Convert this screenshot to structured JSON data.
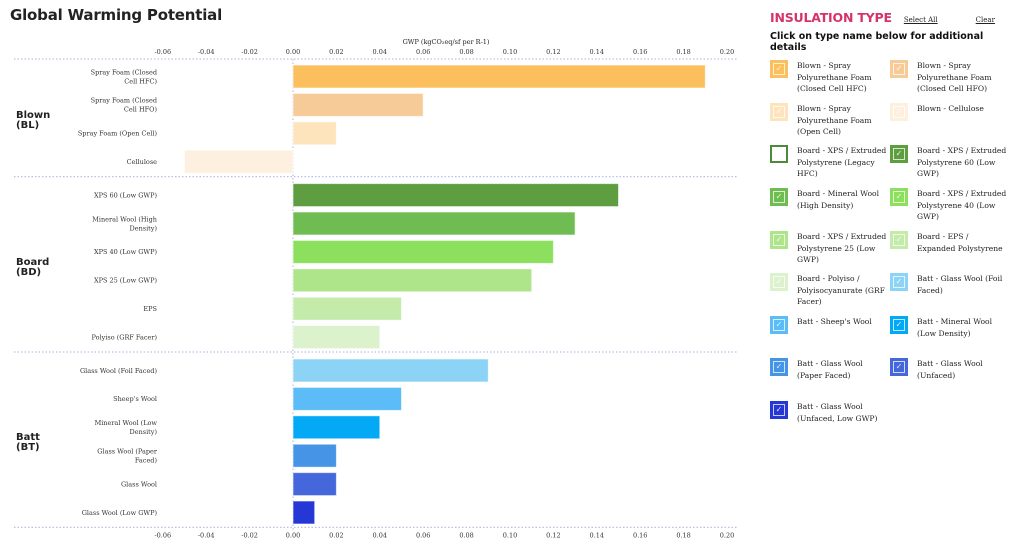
{
  "page": {
    "title": "Global Warming Potential"
  },
  "panel": {
    "title": "INSULATION TYPE",
    "select_all_label": "Select All",
    "clear_label": "Clear",
    "subtitle": "Click on type name below for additional details",
    "legend": [
      {
        "label": "Blown - Spray Polyurethane Foam (Closed Cell HFC)",
        "color": "#fbbf5e",
        "checked": true
      },
      {
        "label": "Blown - Spray Polyurethane Foam (Closed Cell HFO)",
        "color": "#f7cb97",
        "checked": true
      },
      {
        "label": "Blown - Spray Polyurethane Foam (Open Cell)",
        "color": "#fde4bd",
        "checked": true
      },
      {
        "label": "Blown - Cellulose",
        "color": "#fdf0de",
        "checked": true
      },
      {
        "label": "Board - XPS / Extruded Polystyrene (Legacy HFC)",
        "color": "#4e8a3c",
        "checked": false
      },
      {
        "label": "Board - XPS / Extruded Polystyrene 60 (Low GWP)",
        "color": "#5e9e41",
        "checked": true
      },
      {
        "label": "Board - Mineral Wool (High Density)",
        "color": "#6fbd52",
        "checked": true
      },
      {
        "label": "Board - XPS / Extruded Polystyrene 40 (Low GWP)",
        "color": "#8ce05e",
        "checked": true
      },
      {
        "label": "Board - XPS / Extruded Polystyrene 25 (Low GWP)",
        "color": "#aee58a",
        "checked": true
      },
      {
        "label": "Board - EPS / Expanded Polystyrene",
        "color": "#c4ebaa",
        "checked": true
      },
      {
        "label": "Board - Polyiso / Polyisocyanurate (GRF Facer)",
        "color": "#dcf2cd",
        "checked": true
      },
      {
        "label": "Batt - Glass Wool (Foil Faced)",
        "color": "#8dd3f6",
        "checked": true
      },
      {
        "label": "Batt - Sheep's Wool",
        "color": "#5bbcf8",
        "checked": true
      },
      {
        "label": "Batt - Mineral Wool (Low Density)",
        "color": "#03a9f4",
        "checked": true
      },
      {
        "label": "Batt - Glass Wool (Paper Faced)",
        "color": "#4594e6",
        "checked": true
      },
      {
        "label": "Batt - Glass Wool (Unfaced)",
        "color": "#4467db",
        "checked": true
      },
      {
        "label": "Batt - Glass Wool (Unfaced, Low GWP)",
        "color": "#2537d4",
        "checked": true
      }
    ]
  },
  "chart_data": {
    "type": "bar",
    "orientation": "horizontal",
    "title": "Global Warming Potential",
    "xlabel": "GWP (kgCO₂eq/sf per R-1)",
    "ylabel": "",
    "xlim": [
      -0.07,
      0.2
    ],
    "xticks": [
      "-0.06",
      "-0.04",
      "-0.02",
      "0.00",
      "0.02",
      "0.04",
      "0.06",
      "0.08",
      "0.10",
      "0.12",
      "0.14",
      "0.16",
      "0.18",
      "0.20"
    ],
    "xtick_values": [
      -0.06,
      -0.04,
      -0.02,
      0.0,
      0.02,
      0.04,
      0.06,
      0.08,
      0.1,
      0.12,
      0.14,
      0.16,
      0.18,
      0.2
    ],
    "grid": "dotted group separators",
    "groups": [
      {
        "name": "Blown",
        "code": "(BL)",
        "bars": [
          {
            "label": "Spray Foam (Closed Cell HFC)",
            "label_lines": [
              "Spray Foam (Closed",
              "Cell HFC)"
            ],
            "value": 0.19,
            "color": "#fbbf5e"
          },
          {
            "label": "Spray Foam (Closed Cell HFO)",
            "label_lines": [
              "Spray Foam (Closed",
              "Cell HFO)"
            ],
            "value": 0.06,
            "color": "#f7cb97"
          },
          {
            "label": "Spray Foam (Open Cell)",
            "label_lines": [
              "Spray Foam (Open Cell)"
            ],
            "value": 0.02,
            "color": "#fde4bd"
          },
          {
            "label": "Cellulose",
            "label_lines": [
              "Cellulose"
            ],
            "value": -0.05,
            "color": "#fdf0de"
          }
        ]
      },
      {
        "name": "Board",
        "code": "(BD)",
        "bars": [
          {
            "label": "XPS 60 (Low GWP)",
            "label_lines": [
              "XPS 60 (Low GWP)"
            ],
            "value": 0.15,
            "color": "#5e9e41"
          },
          {
            "label": "Mineral Wool (High Density)",
            "label_lines": [
              "Mineral Wool (High",
              "Density)"
            ],
            "value": 0.13,
            "color": "#6fbd52"
          },
          {
            "label": "XPS 40 (Low GWP)",
            "label_lines": [
              "XPS 40 (Low GWP)"
            ],
            "value": 0.12,
            "color": "#8ce05e"
          },
          {
            "label": "XPS 25 (Low GWP)",
            "label_lines": [
              "XPS 25 (Low GWP)"
            ],
            "value": 0.11,
            "color": "#aee58a"
          },
          {
            "label": "EPS",
            "label_lines": [
              "EPS"
            ],
            "value": 0.05,
            "color": "#c4ebaa"
          },
          {
            "label": "Polyiso (GRF Facer)",
            "label_lines": [
              "Polyiso (GRF Facer)"
            ],
            "value": 0.04,
            "color": "#dcf2cd"
          }
        ]
      },
      {
        "name": "Batt",
        "code": "(BT)",
        "bars": [
          {
            "label": "Glass Wool (Foil Faced)",
            "label_lines": [
              "Glass Wool (Foil Faced)"
            ],
            "value": 0.09,
            "color": "#8dd3f6"
          },
          {
            "label": "Sheep's Wool",
            "label_lines": [
              "Sheep's Wool"
            ],
            "value": 0.05,
            "color": "#5bbcf8"
          },
          {
            "label": "Mineral Wool (Low Density)",
            "label_lines": [
              "Mineral Wool (Low",
              "Density)"
            ],
            "value": 0.04,
            "color": "#03a9f4"
          },
          {
            "label": "Glass Wool (Paper Faced)",
            "label_lines": [
              "Glass Wool (Paper",
              "Faced)"
            ],
            "value": 0.02,
            "color": "#4594e6"
          },
          {
            "label": "Glass Wool",
            "label_lines": [
              "Glass Wool"
            ],
            "value": 0.02,
            "color": "#4467db"
          },
          {
            "label": "Glass Wool (Low GWP)",
            "label_lines": [
              "Glass Wool (Low GWP)"
            ],
            "value": 0.01,
            "color": "#2537d4"
          }
        ]
      }
    ],
    "colors": {
      "gridline": "#b9bfe8",
      "panel_accent": "#d6336c"
    }
  }
}
